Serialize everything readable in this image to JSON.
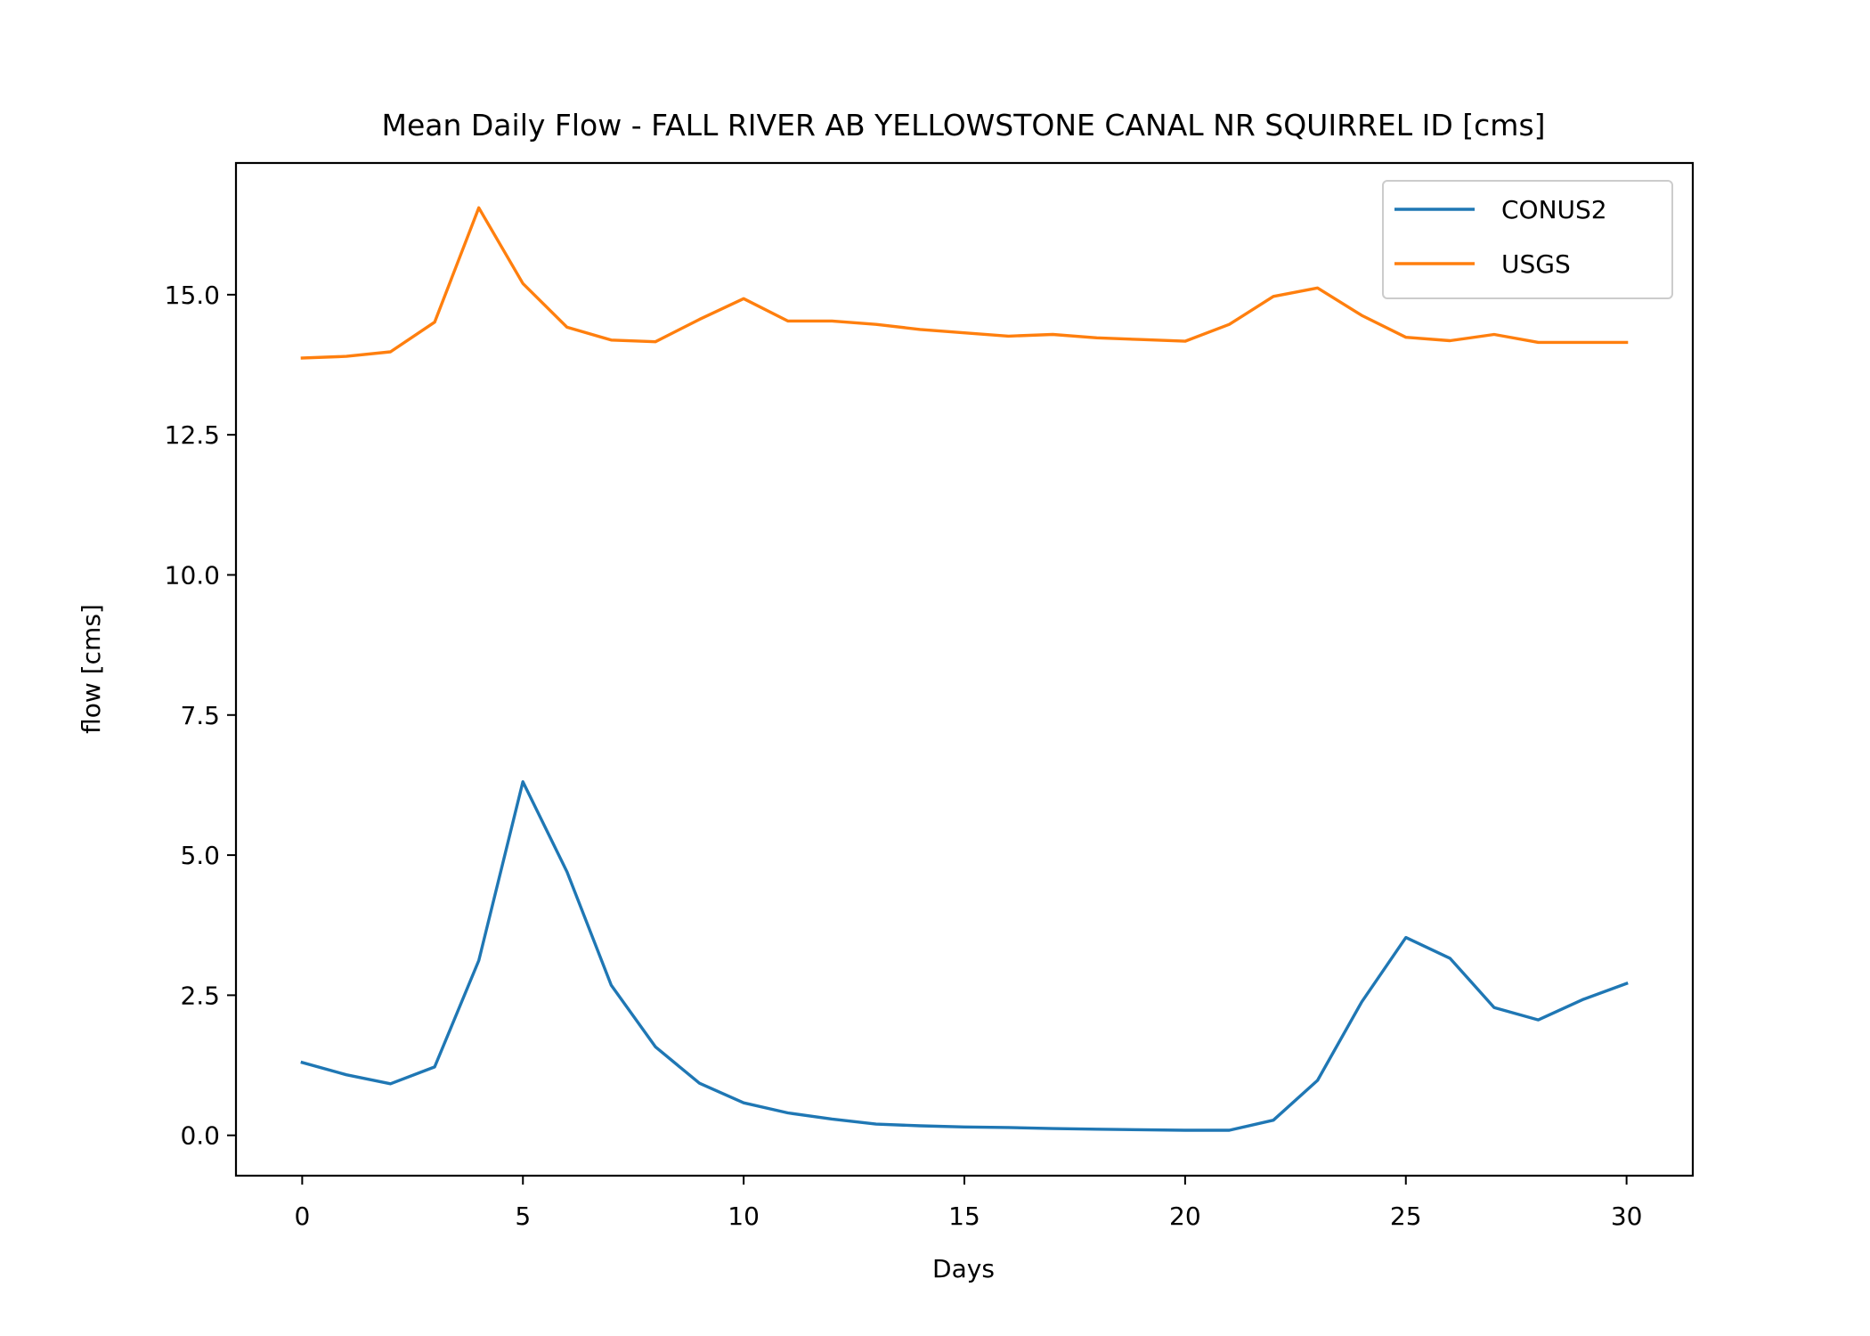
{
  "chart_data": {
    "type": "line",
    "title": "Mean Daily Flow - FALL RIVER AB YELLOWSTONE CANAL NR SQUIRREL ID [cms]",
    "xlabel": "Days",
    "ylabel": "flow [cms]",
    "xlim": [
      -1.5,
      31.5
    ],
    "ylim": [
      -0.72,
      17.35
    ],
    "xticks": [
      0,
      5,
      10,
      15,
      20,
      25,
      30
    ],
    "yticks": [
      0.0,
      2.5,
      5.0,
      7.5,
      10.0,
      12.5,
      15.0
    ],
    "xtick_labels": [
      "0",
      "5",
      "10",
      "15",
      "20",
      "25",
      "30"
    ],
    "ytick_labels": [
      "0.0",
      "2.5",
      "5.0",
      "7.5",
      "10.0",
      "12.5",
      "15.0"
    ],
    "grid": false,
    "legend_position": "upper right",
    "x": [
      0,
      1,
      2,
      3,
      4,
      5,
      6,
      7,
      8,
      9,
      10,
      11,
      12,
      13,
      14,
      15,
      16,
      17,
      18,
      19,
      20,
      21,
      22,
      23,
      24,
      25,
      26,
      27,
      28,
      29,
      30
    ],
    "series": [
      {
        "name": "CONUS2",
        "color": "#1f77b4",
        "values": [
          1.3,
          1.08,
          0.92,
          1.22,
          3.12,
          6.31,
          4.7,
          2.68,
          1.58,
          0.93,
          0.58,
          0.4,
          0.29,
          0.2,
          0.17,
          0.15,
          0.14,
          0.12,
          0.11,
          0.1,
          0.09,
          0.09,
          0.27,
          0.98,
          2.38,
          3.53,
          3.16,
          2.28,
          2.06,
          2.42,
          2.71
        ]
      },
      {
        "name": "USGS",
        "color": "#ff7f0e",
        "values": [
          13.87,
          13.9,
          13.98,
          14.51,
          16.55,
          15.2,
          14.42,
          14.19,
          14.16,
          14.56,
          14.93,
          14.53,
          14.53,
          14.47,
          14.38,
          14.32,
          14.26,
          14.29,
          14.23,
          14.2,
          14.17,
          14.47,
          14.97,
          15.12,
          14.63,
          14.24,
          14.18,
          14.29,
          14.15,
          14.15,
          14.15
        ]
      }
    ]
  }
}
